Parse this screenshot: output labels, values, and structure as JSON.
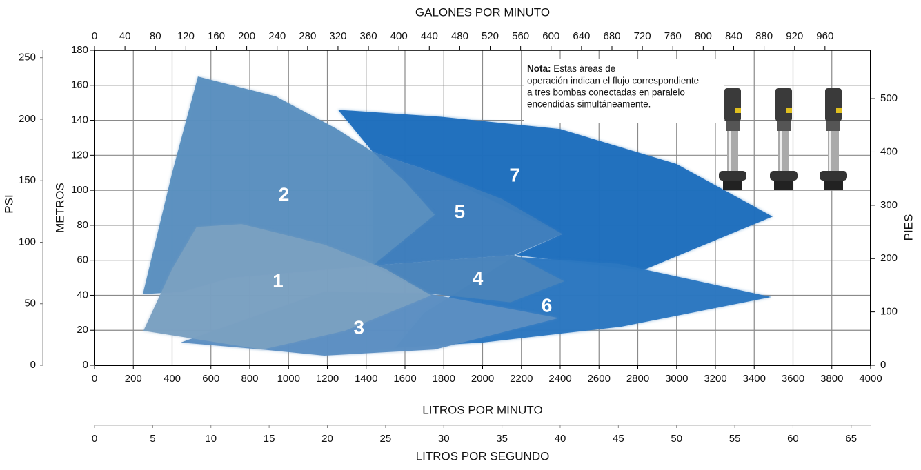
{
  "chart_data": {
    "type": "region",
    "xlabel": "LITROS POR MINUTO",
    "xlim": [
      0,
      4000
    ],
    "xticks": [
      0,
      200,
      400,
      600,
      800,
      1000,
      1200,
      1400,
      1600,
      1800,
      2000,
      2200,
      2400,
      2600,
      2800,
      3000,
      3200,
      3400,
      3600,
      3800,
      4000
    ],
    "x2label": "GALONES POR MINUTO",
    "x2lim": [
      0,
      1020
    ],
    "x2ticks": [
      0,
      40,
      80,
      120,
      160,
      200,
      240,
      280,
      320,
      360,
      400,
      440,
      480,
      520,
      560,
      600,
      640,
      680,
      720,
      760,
      800,
      840,
      880,
      920,
      960
    ],
    "x3label": "LITROS POR SEGUNDO",
    "x3lim": [
      0,
      66.67
    ],
    "x3ticks": [
      0,
      5,
      10,
      15,
      20,
      25,
      30,
      35,
      40,
      45,
      50,
      55,
      60,
      65
    ],
    "ylabel": "METROS",
    "ylim": [
      0,
      180
    ],
    "yticks": [
      0,
      20,
      40,
      60,
      80,
      100,
      120,
      140,
      160,
      180
    ],
    "y2label": "PIES",
    "y2lim": [
      0,
      590.6
    ],
    "y2ticks": [
      0,
      100,
      200,
      300,
      400,
      500
    ],
    "y3label": "PSI",
    "y3lim": [
      0,
      256
    ],
    "y3ticks": [
      0,
      50,
      100,
      150,
      200,
      250
    ],
    "grid": true,
    "note": {
      "bold": "Nota:",
      "lines": [
        " Estas áreas de",
        "operación indican el flujo correspondiente",
        "a tres bombas conectadas en paralelo",
        "encendidas simultáneamente."
      ]
    },
    "series": [
      {
        "name": "7",
        "color": "#1f6ebd",
        "x": [
          1255,
          1788,
          2400,
          3000,
          3495,
          2820,
          2170,
          2411,
          1753,
          1433,
          1300
        ],
        "y": [
          146,
          142,
          135,
          115,
          85,
          54,
          63,
          75,
          110,
          122,
          140
        ]
      },
      {
        "name": "6",
        "color": "#2b77c0",
        "x": [
          2162,
          2700,
          3488,
          2713,
          2002,
          1550,
          1700
        ],
        "y": [
          62,
          58,
          39,
          22,
          13,
          10,
          30
        ]
      },
      {
        "name": "5",
        "color": "#3d7dbc",
        "x": [
          1433,
          1753,
          2100,
          2411,
          2162,
          1433
        ],
        "y": [
          122,
          110,
          95,
          75,
          63,
          57
        ]
      },
      {
        "name": "4",
        "color": "#4883bb",
        "x": [
          1433,
          2162,
          2421,
          2144,
          1717
        ],
        "y": [
          57,
          63,
          48,
          36,
          41
        ]
      },
      {
        "name": "3",
        "color": "#5b8ec2",
        "x": [
          444,
          1184,
          1717,
          2393,
          1753,
          1184,
          864
        ],
        "y": [
          13,
          42,
          41,
          27,
          9,
          5.5,
          9
        ]
      },
      {
        "name": "2",
        "color": "#5a8fbf",
        "x": [
          249,
          400,
          533,
          935,
          1250,
          1433,
          1600,
          1753,
          1433,
          700,
          450
        ],
        "y": [
          40.6,
          110,
          165,
          153.6,
          135,
          122,
          105,
          86,
          57,
          50,
          42
        ]
      },
      {
        "name": "1",
        "color": "#7aa0c1",
        "x": [
          252,
          400,
          526,
          757,
          1184,
          1500,
          1735,
          1290,
          864
        ],
        "y": [
          19.7,
          55,
          79,
          80.7,
          69,
          55,
          40,
          19.7,
          9
        ]
      }
    ]
  }
}
